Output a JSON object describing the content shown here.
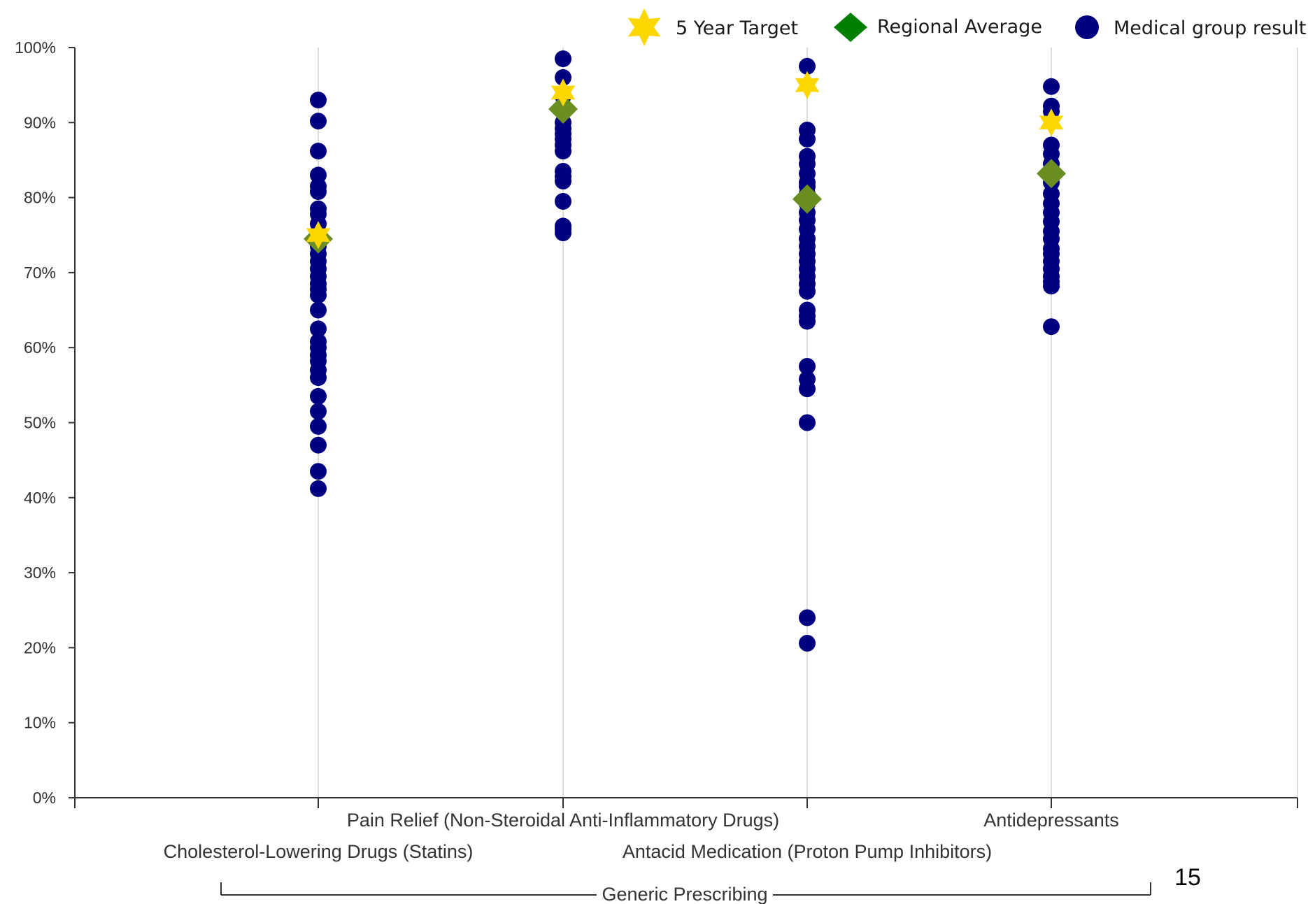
{
  "chart_data": {
    "type": "scatter",
    "ylim": [
      0,
      100
    ],
    "y_ticks": [
      "0%",
      "10%",
      "20%",
      "30%",
      "40%",
      "50%",
      "60%",
      "70%",
      "80%",
      "90%",
      "100%"
    ],
    "categories": [
      "Cholesterol-Lowering Drugs (Statins)",
      "Pain Relief (Non-Steroidal Anti-Inflammatory Drugs)",
      "Antacid Medication (Proton Pump Inhibitors)",
      "Antidepressants"
    ],
    "group_label": "Generic Prescribing",
    "legend": {
      "placement": "top-right",
      "items": [
        {
          "label": "5 Year Target",
          "marker": "star-icon",
          "color": "#FFD700"
        },
        {
          "label": "Regional Average",
          "marker": "diamond-icon",
          "color": "#008000"
        },
        {
          "label": "Medical group result",
          "marker": "circle-icon",
          "color": "#000080"
        }
      ]
    },
    "series": [
      {
        "name": "Medical group result",
        "color": "#000080",
        "points": [
          [
            93.0,
            90.2,
            86.2,
            83.0,
            81.5,
            80.8,
            78.5,
            77.8,
            76.5,
            75.0,
            73.5,
            72.5,
            71.5,
            70.5,
            69.5,
            68.5,
            67.8,
            67.0,
            65.0,
            62.5,
            60.8,
            60.0,
            59.0,
            58.2,
            57.0,
            56.0,
            53.5,
            51.5,
            49.5,
            47.0,
            43.5,
            41.2
          ],
          [
            98.5,
            96.0,
            93.5,
            91.5,
            90.0,
            89.2,
            88.5,
            87.8,
            87.0,
            86.2,
            83.5,
            82.8,
            82.2,
            79.5,
            76.2,
            75.8,
            75.3
          ],
          [
            97.5,
            89.0,
            87.8,
            85.5,
            84.5,
            83.2,
            82.0,
            81.5,
            80.5,
            79.2,
            78.0,
            77.0,
            75.8,
            74.5,
            73.5,
            72.5,
            71.5,
            70.5,
            69.5,
            68.5,
            67.5,
            65.0,
            64.2,
            63.5,
            57.5,
            55.8,
            54.5,
            50.0,
            24.0,
            20.6
          ],
          [
            94.8,
            92.2,
            91.5,
            87.0,
            85.8,
            84.5,
            82.0,
            80.5,
            79.2,
            78.0,
            76.8,
            75.5,
            74.5,
            73.2,
            72.5,
            71.5,
            70.5,
            69.5,
            68.8,
            68.2,
            62.8
          ]
        ]
      },
      {
        "name": "Regional Average",
        "color": "#6B8E23",
        "values": [
          74.5,
          91.8,
          79.8,
          83.2
        ]
      },
      {
        "name": "5 Year Target",
        "color": "#FFD700",
        "values": [
          75.0,
          94.0,
          95.0,
          90.0
        ]
      }
    ]
  },
  "page_number": "15"
}
